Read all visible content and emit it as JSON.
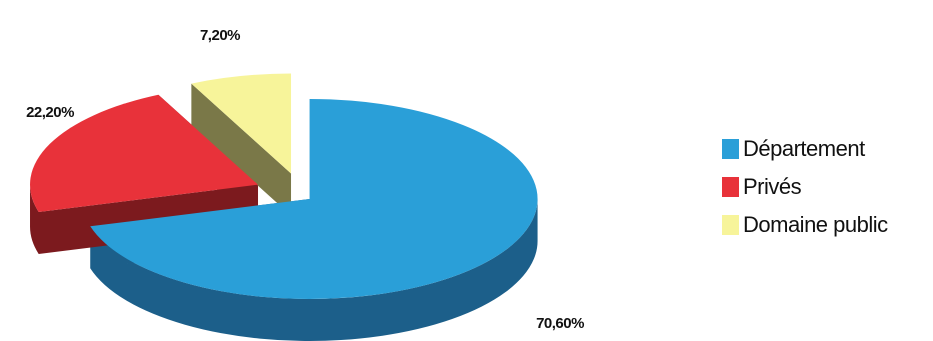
{
  "chart_data": {
    "type": "pie",
    "title": "",
    "categories": [
      "Département",
      "Privés",
      "Domaine public"
    ],
    "values": [
      70.6,
      22.2,
      7.2
    ],
    "labels": [
      "70,60%",
      "22,20%",
      "7,20%"
    ],
    "colors": [
      "#2a9fd8",
      "#e8323a",
      "#f7f49a"
    ],
    "side_colors": [
      "#1c5f8a",
      "#7c1a1e",
      "#7a7848"
    ],
    "style": "3d-exploded",
    "legend_position": "right"
  },
  "legend": {
    "items": [
      {
        "label": "Département",
        "color": "#2a9fd8"
      },
      {
        "label": "Privés",
        "color": "#e8323a"
      },
      {
        "label": "Domaine public",
        "color": "#f7f49a"
      }
    ]
  }
}
